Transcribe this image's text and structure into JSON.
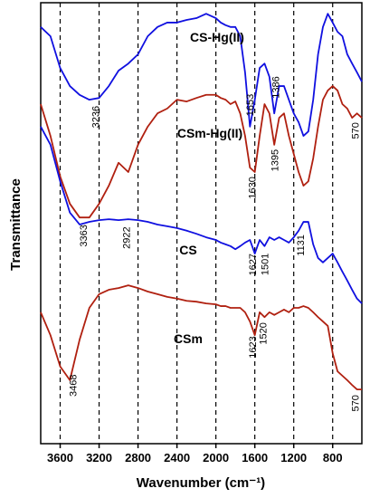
{
  "chart_data": {
    "type": "line",
    "xlabel": "Wavenumber (cm⁻¹)",
    "ylabel": "Transmittance",
    "xlim": [
      3800,
      500
    ],
    "ylim": [
      0,
      100
    ],
    "xticks": [
      3600,
      3200,
      2800,
      2400,
      2000,
      1600,
      1200,
      800
    ],
    "grid": "dashed",
    "x": [
      3800,
      3700,
      3600,
      3500,
      3400,
      3300,
      3200,
      3100,
      3000,
      2900,
      2800,
      2700,
      2600,
      2500,
      2400,
      2300,
      2200,
      2100,
      2000,
      1950,
      1900,
      1850,
      1800,
      1750,
      1700,
      1650,
      1600,
      1550,
      1500,
      1450,
      1400,
      1350,
      1300,
      1250,
      1200,
      1150,
      1100,
      1050,
      1000,
      950,
      900,
      850,
      800,
      750,
      700,
      650,
      600,
      550,
      500
    ],
    "series": [
      {
        "name": "CS-Hg(II)",
        "color": "#1010e0",
        "peaks": [
          3236,
          1653,
          1386
        ],
        "values": [
          94.5,
          92.4,
          85.2,
          81.1,
          79.1,
          78.0,
          78.4,
          81.1,
          84.6,
          86.2,
          88.3,
          92.4,
          94.5,
          95.5,
          95.5,
          96.1,
          96.5,
          97.5,
          96.5,
          95.5,
          94.9,
          94.5,
          94.5,
          92.4,
          84.2,
          71.9,
          78.0,
          85.2,
          86.2,
          83.2,
          74.9,
          81.1,
          81.1,
          78.0,
          74.9,
          72.9,
          69.8,
          70.8,
          78.0,
          88.3,
          94.5,
          97.5,
          95.5,
          93.4,
          92.4,
          88.3,
          86.2,
          84.2,
          82.1
        ]
      },
      {
        "name": "CSm-Hg(II)",
        "color": "#b02010",
        "peaks": [
          3363,
          1630,
          1395,
          570
        ],
        "values": [
          77.0,
          69.8,
          60.6,
          54.4,
          51.3,
          51.3,
          54.4,
          58.5,
          63.7,
          61.6,
          67.8,
          71.9,
          74.9,
          76.0,
          78.0,
          77.6,
          78.4,
          79.1,
          79.1,
          78.4,
          78.0,
          77.0,
          77.6,
          74.9,
          69.8,
          62.6,
          61.6,
          69.8,
          77.0,
          74.9,
          67.8,
          73.9,
          74.9,
          69.8,
          65.7,
          61.6,
          58.5,
          59.5,
          64.7,
          71.9,
          78.0,
          80.1,
          81.1,
          80.1,
          77.0,
          76.0,
          73.9,
          74.9,
          73.9
        ]
      },
      {
        "name": "CS",
        "color": "#1010e0",
        "peaks": [
          2922,
          1627,
          1501,
          1131
        ],
        "values": [
          71.9,
          67.8,
          59.5,
          52.4,
          49.7,
          50.3,
          50.7,
          50.9,
          50.7,
          50.9,
          50.7,
          50.3,
          49.7,
          49.3,
          48.9,
          48.3,
          47.6,
          46.8,
          46.2,
          45.6,
          45.2,
          44.8,
          44.1,
          44.8,
          45.6,
          46.2,
          43.1,
          46.2,
          44.8,
          46.8,
          46.2,
          46.8,
          46.2,
          45.6,
          46.8,
          48.3,
          50.3,
          50.3,
          45.2,
          42.1,
          41.1,
          42.1,
          43.1,
          41.1,
          39.0,
          37.0,
          34.9,
          32.9,
          31.8
        ]
      },
      {
        "name": "CSm",
        "color": "#b02010",
        "peaks": [
          3468,
          1623,
          1520,
          570
        ],
        "values": [
          29.8,
          24.6,
          17.5,
          14.4,
          23.6,
          30.8,
          33.9,
          34.9,
          35.3,
          35.9,
          35.3,
          34.5,
          33.9,
          33.3,
          32.9,
          32.4,
          32.2,
          31.8,
          31.6,
          31.2,
          31.2,
          30.8,
          30.8,
          30.8,
          29.8,
          27.7,
          24.6,
          29.8,
          28.7,
          29.8,
          29.2,
          29.8,
          30.4,
          29.8,
          30.8,
          30.8,
          31.2,
          30.8,
          29.8,
          28.7,
          27.7,
          26.7,
          20.5,
          16.4,
          15.4,
          14.4,
          13.3,
          12.3,
          12.3
        ]
      }
    ]
  }
}
